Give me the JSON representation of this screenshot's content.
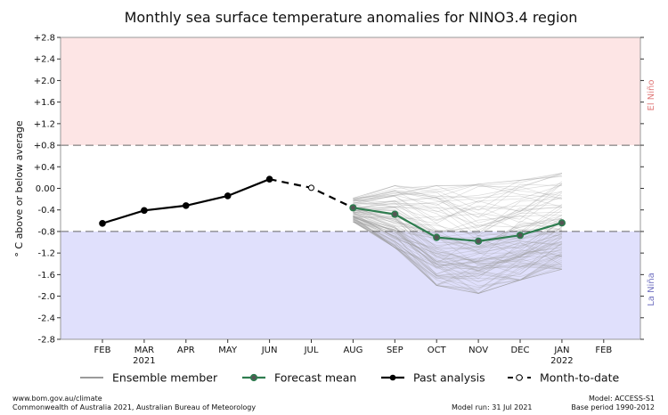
{
  "chart_data": {
    "type": "line",
    "title": "Monthly sea surface temperature anomalies for NINO3.4 region",
    "ylabel": "° C above or below average",
    "ylim": [
      -2.8,
      2.8
    ],
    "yticks": [
      "+2.8",
      "+2.4",
      "+2.0",
      "+1.6",
      "+1.2",
      "+0.8",
      "+0.4",
      "0.00",
      "-0.4",
      "-0.8",
      "-1.2",
      "-1.6",
      "-2.0",
      "-2.4",
      "-2.8"
    ],
    "ytick_values": [
      2.8,
      2.4,
      2.0,
      1.6,
      1.2,
      0.8,
      0.4,
      0.0,
      -0.4,
      -0.8,
      -1.2,
      -1.6,
      -2.0,
      -2.4,
      -2.8
    ],
    "categories": [
      "FEB",
      "MAR",
      "APR",
      "MAY",
      "JUN",
      "JUL",
      "AUG",
      "SEP",
      "OCT",
      "NOV",
      "DEC",
      "JAN",
      "FEB"
    ],
    "year_labels": [
      {
        "index": 1,
        "label": "2021"
      },
      {
        "index": 11,
        "label": "2022"
      }
    ],
    "thresholds": {
      "el_nino": 0.8,
      "la_nina": -0.8,
      "el_nino_label": "El Niño",
      "la_nina_label": "La Niña",
      "el_nino_color": "#fde5e5",
      "la_nina_color": "#e0e0fc",
      "el_nino_text_color": "#e07a7a",
      "la_nina_text_color": "#7070c0"
    },
    "series": [
      {
        "name": "Past analysis",
        "style": "solid",
        "color": "#000000",
        "x": [
          0,
          1,
          2,
          3,
          4
        ],
        "values": [
          -0.65,
          -0.41,
          -0.32,
          -0.14,
          0.17
        ]
      },
      {
        "name": "Month-to-date",
        "style": "dashed",
        "color": "#000000",
        "x": [
          4,
          5,
          6
        ],
        "values": [
          0.17,
          0.01,
          -0.36
        ]
      },
      {
        "name": "Forecast mean",
        "style": "solid",
        "color": "#2e7d4f",
        "x": [
          6,
          7,
          8,
          9,
          10,
          11
        ],
        "values": [
          -0.36,
          -0.48,
          -0.91,
          -0.98,
          -0.87,
          -0.64
        ]
      }
    ],
    "ensemble": {
      "name": "Ensemble member",
      "color": "#9a9a9a",
      "x": [
        6,
        7,
        8,
        9,
        10,
        11
      ],
      "upper": [
        -0.18,
        0.05,
        0.05,
        0.08,
        0.15,
        0.28
      ],
      "lower": [
        -0.62,
        -1.1,
        -1.8,
        -1.95,
        -1.7,
        -1.5
      ]
    },
    "legend": {
      "placement": "bottom",
      "items": [
        {
          "label": "Ensemble member",
          "type": "line"
        },
        {
          "label": "Forecast mean",
          "type": "line-marker-green"
        },
        {
          "label": "Past analysis",
          "type": "line-marker-black"
        },
        {
          "label": "Month-to-date",
          "type": "dashed-open-marker"
        }
      ]
    }
  },
  "footer": {
    "url": "www.bom.gov.au/climate",
    "copyright": "Commonwealth of Australia 2021, Australian Bureau of Meteorology",
    "model_run": "Model run: 31 Jul 2021",
    "model": "Model: ACCESS-S1",
    "base_period": "Base period 1990-2012"
  }
}
